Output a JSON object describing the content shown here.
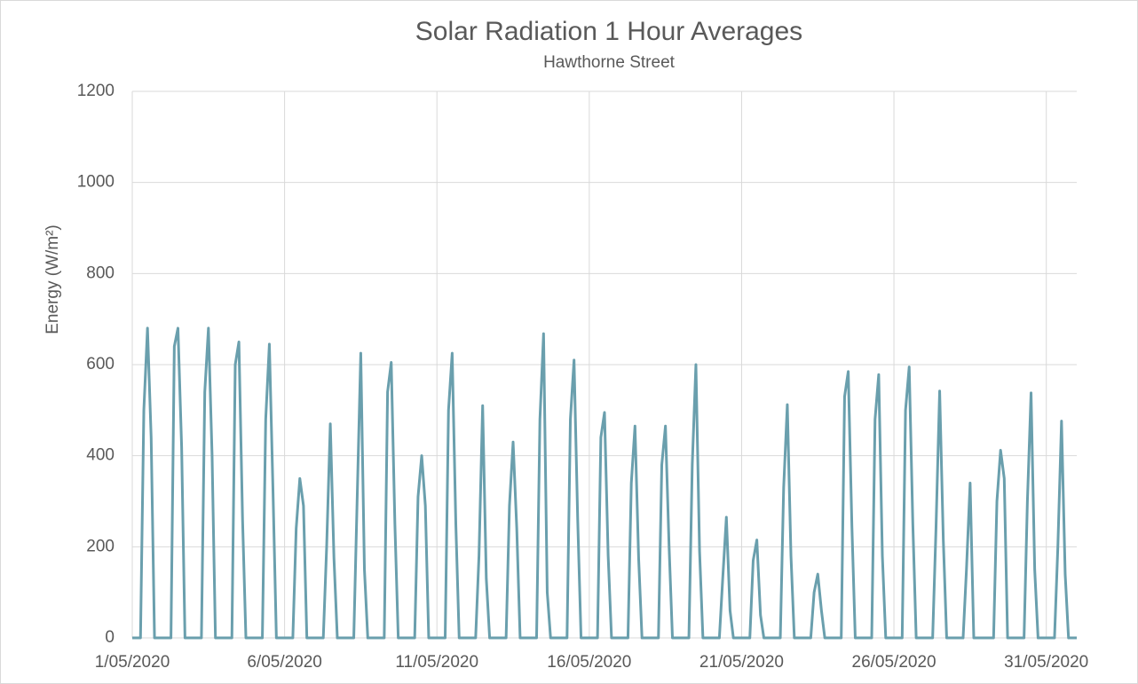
{
  "chart_data": {
    "type": "line",
    "title": "Solar Radiation 1 Hour Averages",
    "subtitle": "Hawthorne  Street",
    "y_label": "Energy  (W/m²)",
    "x": [
      0,
      0.27,
      0.38,
      0.5,
      0.62,
      0.73,
      1.27,
      1.38,
      1.5,
      1.62,
      1.73,
      2.27,
      2.38,
      2.5,
      2.62,
      2.73,
      3.27,
      3.38,
      3.5,
      3.62,
      3.73,
      4.27,
      4.38,
      4.5,
      4.62,
      4.73,
      5.27,
      5.38,
      5.5,
      5.62,
      5.73,
      6.27,
      6.38,
      6.5,
      6.62,
      6.73,
      7.27,
      7.38,
      7.5,
      7.62,
      7.73,
      8.27,
      8.38,
      8.5,
      8.62,
      8.73,
      9.27,
      9.38,
      9.5,
      9.62,
      9.73,
      10.27,
      10.38,
      10.5,
      10.62,
      10.73,
      11.27,
      11.38,
      11.5,
      11.62,
      11.73,
      12.27,
      12.38,
      12.5,
      12.62,
      12.73,
      13.27,
      13.38,
      13.5,
      13.62,
      13.73,
      14.27,
      14.38,
      14.5,
      14.62,
      14.73,
      15.27,
      15.38,
      15.5,
      15.62,
      15.73,
      16.27,
      16.38,
      16.5,
      16.62,
      16.73,
      17.27,
      17.38,
      17.5,
      17.62,
      17.73,
      18.27,
      18.38,
      18.5,
      18.62,
      18.73,
      19.27,
      19.38,
      19.5,
      19.62,
      19.73,
      20.27,
      20.38,
      20.5,
      20.62,
      20.73,
      21.27,
      21.38,
      21.5,
      21.62,
      21.73,
      22.27,
      22.38,
      22.5,
      22.62,
      22.73,
      23.27,
      23.38,
      23.5,
      23.62,
      23.73,
      24.27,
      24.38,
      24.5,
      24.62,
      24.73,
      25.27,
      25.38,
      25.5,
      25.62,
      25.73,
      26.27,
      26.38,
      26.5,
      26.62,
      26.73,
      27.27,
      27.38,
      27.5,
      27.62,
      27.73,
      28.27,
      28.38,
      28.5,
      28.62,
      28.73,
      29.27,
      29.38,
      29.5,
      29.62,
      29.73,
      30.27,
      30.38,
      30.5,
      30.62,
      30.73,
      31
    ],
    "series": [
      {
        "name": "Solar Radiation",
        "color": "#6a9fad",
        "values": [
          0,
          0,
          500,
          680,
          440,
          0,
          0,
          640,
          680,
          420,
          0,
          0,
          540,
          680,
          400,
          0,
          0,
          600,
          650,
          260,
          0,
          0,
          480,
          645,
          320,
          0,
          0,
          240,
          350,
          290,
          0,
          0,
          200,
          470,
          175,
          0,
          0,
          300,
          625,
          150,
          0,
          0,
          540,
          605,
          250,
          0,
          0,
          310,
          400,
          290,
          0,
          0,
          500,
          625,
          250,
          0,
          0,
          180,
          510,
          130,
          0,
          0,
          290,
          430,
          240,
          0,
          0,
          480,
          668,
          100,
          0,
          0,
          480,
          610,
          260,
          0,
          0,
          440,
          495,
          180,
          0,
          0,
          340,
          465,
          175,
          0,
          0,
          380,
          465,
          200,
          0,
          0,
          380,
          600,
          190,
          0,
          0,
          130,
          265,
          60,
          0,
          0,
          170,
          215,
          50,
          0,
          0,
          330,
          512,
          180,
          0,
          0,
          100,
          140,
          60,
          0,
          0,
          530,
          585,
          245,
          0,
          0,
          480,
          578,
          180,
          0,
          0,
          500,
          595,
          250,
          0,
          0,
          240,
          542,
          215,
          0,
          0,
          150,
          340,
          0,
          0,
          0,
          300,
          412,
          350,
          0,
          0,
          300,
          538,
          150,
          0,
          0,
          200,
          476,
          140,
          0,
          0
        ]
      }
    ],
    "xlim": [
      0,
      31
    ],
    "xticks": [
      {
        "value": 0,
        "label": "1/05/2020"
      },
      {
        "value": 5,
        "label": "6/05/2020"
      },
      {
        "value": 10,
        "label": "11/05/2020"
      },
      {
        "value": 15,
        "label": "16/05/2020"
      },
      {
        "value": 20,
        "label": "21/05/2020"
      },
      {
        "value": 25,
        "label": "26/05/2020"
      },
      {
        "value": 30,
        "label": "31/05/2020"
      }
    ],
    "ylim": [
      0,
      1200
    ],
    "yticks": [
      0,
      200,
      400,
      600,
      800,
      1000,
      1200
    ],
    "grid": true
  }
}
